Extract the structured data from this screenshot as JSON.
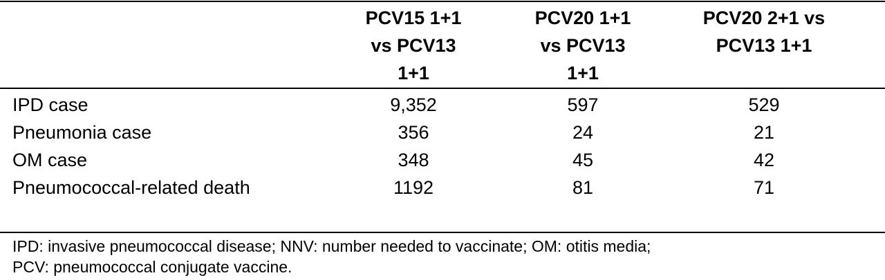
{
  "table": {
    "header": [
      "",
      "PCV15 1+1 vs PCV13 1+1",
      "PCV20 1+1 vs PCV13 1+1",
      "PCV20 2+1 vs PCV13 1+1"
    ],
    "rows": [
      [
        "IPD case",
        "9,352",
        "597",
        "529"
      ],
      [
        "Pneumonia case",
        "356",
        "24",
        "21"
      ],
      [
        "OM case",
        "348",
        "45",
        "42"
      ],
      [
        "Pneumococcal-related death",
        "1192",
        "81",
        "71"
      ]
    ],
    "footnote": [
      "IPD: invasive pneumococcal disease; NNV: number needed to vaccinate; OM: otitis media;",
      "PCV: pneumococcal conjugate vaccine."
    ]
  }
}
